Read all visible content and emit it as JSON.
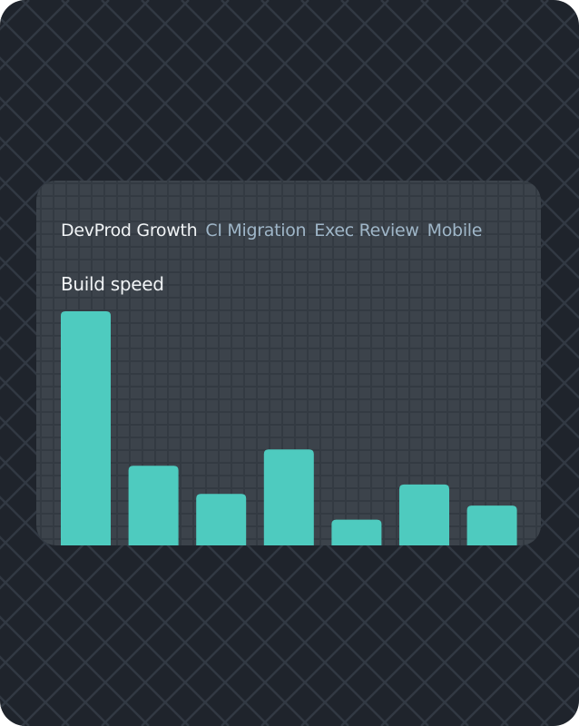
{
  "tabs": [
    {
      "label": "DevProd Growth",
      "active": true
    },
    {
      "label": "CI Migration",
      "active": false
    },
    {
      "label": "Exec Review",
      "active": false
    },
    {
      "label": "Mobile",
      "active": false
    }
  ],
  "colors": {
    "bar": "#4ecbbf",
    "background": "#1f242c",
    "card": "#3c434b",
    "active_tab": "#f1f4f6",
    "inactive_tab": "#9fb6c8"
  },
  "chart_data": {
    "type": "bar",
    "title": "Build speed",
    "values": [
      100,
      34,
      22,
      41,
      11,
      26,
      17
    ],
    "ylim": [
      0,
      100
    ],
    "grid": false,
    "legend": "none"
  }
}
